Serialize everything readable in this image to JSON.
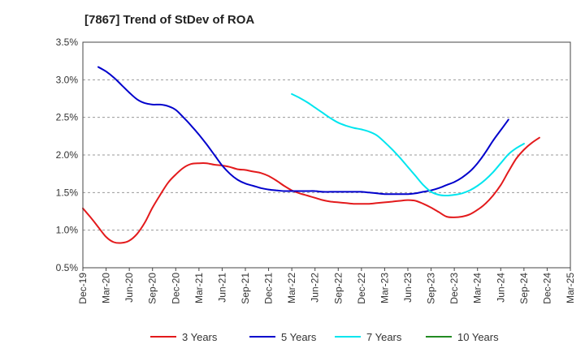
{
  "chart_data": {
    "type": "line",
    "title": "[7867]  Trend of StDev of ROA",
    "xlabel": "",
    "ylabel": "",
    "ylim": [
      0.5,
      3.5
    ],
    "y_ticks": [
      "0.5%",
      "1.0%",
      "1.5%",
      "2.0%",
      "2.5%",
      "3.0%",
      "3.5%"
    ],
    "y_tick_values": [
      0.5,
      1.0,
      1.5,
      2.0,
      2.5,
      3.0,
      3.5
    ],
    "x_ticks": [
      "Dec-19",
      "Mar-20",
      "Jun-20",
      "Sep-20",
      "Dec-20",
      "Mar-21",
      "Jun-21",
      "Sep-21",
      "Dec-21",
      "Mar-22",
      "Jun-22",
      "Sep-22",
      "Dec-22",
      "Mar-23",
      "Jun-23",
      "Sep-23",
      "Dec-23",
      "Mar-24",
      "Jun-24",
      "Sep-24",
      "Dec-24",
      "Mar-25"
    ],
    "x_ticks_dates": [
      "2019-12",
      "2020-03",
      "2020-06",
      "2020-09",
      "2020-12",
      "2021-03",
      "2021-06",
      "2021-09",
      "2021-12",
      "2022-03",
      "2022-06",
      "2022-09",
      "2022-12",
      "2023-03",
      "2023-06",
      "2023-09",
      "2023-12",
      "2024-03",
      "2024-06",
      "2024-09",
      "2024-12",
      "2025-03"
    ],
    "grid": "horizontal-dashed",
    "legend_position": "bottom",
    "series": [
      {
        "name": "3 Years",
        "color": "#e31a1c",
        "points": [
          [
            "2019-12",
            1.29
          ],
          [
            "2020-01",
            1.17
          ],
          [
            "2020-02",
            1.04
          ],
          [
            "2020-03",
            0.91
          ],
          [
            "2020-04",
            0.84
          ],
          [
            "2020-05",
            0.83
          ],
          [
            "2020-06",
            0.86
          ],
          [
            "2020-07",
            0.95
          ],
          [
            "2020-08",
            1.1
          ],
          [
            "2020-09",
            1.3
          ],
          [
            "2020-10",
            1.47
          ],
          [
            "2020-11",
            1.63
          ],
          [
            "2020-12",
            1.74
          ],
          [
            "2021-01",
            1.83
          ],
          [
            "2021-02",
            1.88
          ],
          [
            "2021-03",
            1.89
          ],
          [
            "2021-04",
            1.89
          ],
          [
            "2021-05",
            1.87
          ],
          [
            "2021-06",
            1.86
          ],
          [
            "2021-07",
            1.84
          ],
          [
            "2021-08",
            1.81
          ],
          [
            "2021-09",
            1.8
          ],
          [
            "2021-10",
            1.78
          ],
          [
            "2021-11",
            1.76
          ],
          [
            "2021-12",
            1.72
          ],
          [
            "2022-01",
            1.66
          ],
          [
            "2022-02",
            1.59
          ],
          [
            "2022-03",
            1.53
          ],
          [
            "2022-04",
            1.49
          ],
          [
            "2022-05",
            1.46
          ],
          [
            "2022-06",
            1.43
          ],
          [
            "2022-07",
            1.4
          ],
          [
            "2022-08",
            1.38
          ],
          [
            "2022-09",
            1.37
          ],
          [
            "2022-10",
            1.36
          ],
          [
            "2022-11",
            1.35
          ],
          [
            "2022-12",
            1.35
          ],
          [
            "2023-01",
            1.35
          ],
          [
            "2023-02",
            1.36
          ],
          [
            "2023-03",
            1.37
          ],
          [
            "2023-04",
            1.38
          ],
          [
            "2023-05",
            1.39
          ],
          [
            "2023-06",
            1.4
          ],
          [
            "2023-07",
            1.39
          ],
          [
            "2023-08",
            1.35
          ],
          [
            "2023-09",
            1.3
          ],
          [
            "2023-10",
            1.24
          ],
          [
            "2023-11",
            1.18
          ],
          [
            "2023-12",
            1.17
          ],
          [
            "2024-01",
            1.18
          ],
          [
            "2024-02",
            1.21
          ],
          [
            "2024-03",
            1.27
          ],
          [
            "2024-04",
            1.35
          ],
          [
            "2024-05",
            1.46
          ],
          [
            "2024-06",
            1.6
          ],
          [
            "2024-07",
            1.78
          ],
          [
            "2024-08",
            1.95
          ],
          [
            "2024-09",
            2.07
          ],
          [
            "2024-10",
            2.16
          ],
          [
            "2024-11",
            2.23
          ]
        ]
      },
      {
        "name": "5 Years",
        "color": "#0000cc",
        "points": [
          [
            "2020-02",
            3.17
          ],
          [
            "2020-03",
            3.11
          ],
          [
            "2020-04",
            3.03
          ],
          [
            "2020-05",
            2.93
          ],
          [
            "2020-06",
            2.83
          ],
          [
            "2020-07",
            2.74
          ],
          [
            "2020-08",
            2.69
          ],
          [
            "2020-09",
            2.67
          ],
          [
            "2020-10",
            2.67
          ],
          [
            "2020-11",
            2.65
          ],
          [
            "2020-12",
            2.6
          ],
          [
            "2021-01",
            2.5
          ],
          [
            "2021-02",
            2.39
          ],
          [
            "2021-03",
            2.27
          ],
          [
            "2021-04",
            2.14
          ],
          [
            "2021-05",
            2.0
          ],
          [
            "2021-06",
            1.86
          ],
          [
            "2021-07",
            1.75
          ],
          [
            "2021-08",
            1.67
          ],
          [
            "2021-09",
            1.62
          ],
          [
            "2021-10",
            1.59
          ],
          [
            "2021-11",
            1.56
          ],
          [
            "2021-12",
            1.54
          ],
          [
            "2022-01",
            1.53
          ],
          [
            "2022-02",
            1.52
          ],
          [
            "2022-03",
            1.52
          ],
          [
            "2022-04",
            1.52
          ],
          [
            "2022-05",
            1.52
          ],
          [
            "2022-06",
            1.52
          ],
          [
            "2022-07",
            1.51
          ],
          [
            "2022-08",
            1.51
          ],
          [
            "2022-09",
            1.51
          ],
          [
            "2022-10",
            1.51
          ],
          [
            "2022-11",
            1.51
          ],
          [
            "2022-12",
            1.51
          ],
          [
            "2023-01",
            1.5
          ],
          [
            "2023-02",
            1.49
          ],
          [
            "2023-03",
            1.48
          ],
          [
            "2023-04",
            1.48
          ],
          [
            "2023-05",
            1.48
          ],
          [
            "2023-06",
            1.48
          ],
          [
            "2023-07",
            1.49
          ],
          [
            "2023-08",
            1.51
          ],
          [
            "2023-09",
            1.53
          ],
          [
            "2023-10",
            1.56
          ],
          [
            "2023-11",
            1.6
          ],
          [
            "2023-12",
            1.64
          ],
          [
            "2024-01",
            1.7
          ],
          [
            "2024-02",
            1.78
          ],
          [
            "2024-03",
            1.89
          ],
          [
            "2024-04",
            2.03
          ],
          [
            "2024-05",
            2.19
          ],
          [
            "2024-06",
            2.33
          ],
          [
            "2024-07",
            2.47
          ]
        ]
      },
      {
        "name": "7 Years",
        "color": "#00e5ee",
        "points": [
          [
            "2022-03",
            2.81
          ],
          [
            "2022-04",
            2.76
          ],
          [
            "2022-05",
            2.7
          ],
          [
            "2022-06",
            2.63
          ],
          [
            "2022-07",
            2.56
          ],
          [
            "2022-08",
            2.49
          ],
          [
            "2022-09",
            2.43
          ],
          [
            "2022-10",
            2.39
          ],
          [
            "2022-11",
            2.36
          ],
          [
            "2022-12",
            2.34
          ],
          [
            "2023-01",
            2.31
          ],
          [
            "2023-02",
            2.26
          ],
          [
            "2023-03",
            2.17
          ],
          [
            "2023-04",
            2.07
          ],
          [
            "2023-05",
            1.96
          ],
          [
            "2023-06",
            1.84
          ],
          [
            "2023-07",
            1.72
          ],
          [
            "2023-08",
            1.6
          ],
          [
            "2023-09",
            1.51
          ],
          [
            "2023-10",
            1.47
          ],
          [
            "2023-11",
            1.46
          ],
          [
            "2023-12",
            1.47
          ],
          [
            "2024-01",
            1.49
          ],
          [
            "2024-02",
            1.53
          ],
          [
            "2024-03",
            1.59
          ],
          [
            "2024-04",
            1.67
          ],
          [
            "2024-05",
            1.77
          ],
          [
            "2024-06",
            1.89
          ],
          [
            "2024-07",
            2.01
          ],
          [
            "2024-08",
            2.09
          ],
          [
            "2024-09",
            2.15
          ]
        ]
      },
      {
        "name": "10 Years",
        "color": "#228b22",
        "points": []
      }
    ]
  }
}
